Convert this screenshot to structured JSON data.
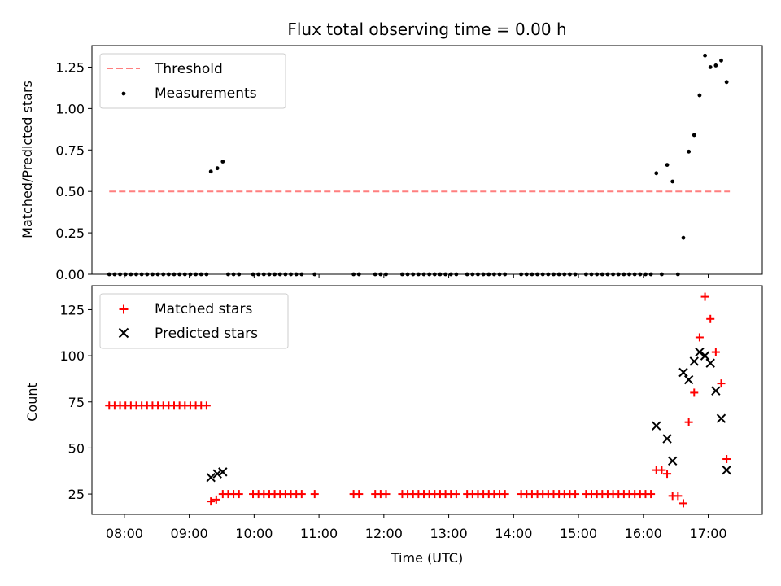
{
  "chart_data": [
    {
      "type": "scatter",
      "title": "Flux total observing time = 0.00 h",
      "xlabel": "",
      "ylabel": "Matched/Predicted stars",
      "xlim": [
        "07:30",
        "17:50"
      ],
      "ylim": [
        0,
        1.38
      ],
      "yticks": [
        0.0,
        0.25,
        0.5,
        0.75,
        1.0,
        1.25
      ],
      "ytick_labels": [
        "0.00",
        "0.25",
        "0.50",
        "0.75",
        "1.00",
        "1.25"
      ],
      "xticks": [
        "08:00",
        "09:00",
        "10:00",
        "11:00",
        "12:00",
        "13:00",
        "14:00",
        "15:00",
        "16:00",
        "17:00"
      ],
      "legend_position": "top-left",
      "legend": [
        "Threshold",
        "Measurements"
      ],
      "series": [
        {
          "name": "Threshold",
          "kind": "dashed-line",
          "color": "#ff7f7f",
          "points": [
            [
              "07:46",
              0.5
            ],
            [
              "17:20",
              0.5
            ]
          ]
        },
        {
          "name": "Measurements",
          "kind": "dot",
          "color": "#000000",
          "points": [
            [
              "07:46",
              0
            ],
            [
              "07:51",
              0
            ],
            [
              "07:56",
              0
            ],
            [
              "08:01",
              0
            ],
            [
              "08:06",
              0
            ],
            [
              "08:11",
              0
            ],
            [
              "08:16",
              0
            ],
            [
              "08:21",
              0
            ],
            [
              "08:26",
              0
            ],
            [
              "08:31",
              0
            ],
            [
              "08:36",
              0
            ],
            [
              "08:41",
              0
            ],
            [
              "08:46",
              0
            ],
            [
              "08:51",
              0
            ],
            [
              "08:56",
              0
            ],
            [
              "09:01",
              0
            ],
            [
              "09:06",
              0
            ],
            [
              "09:11",
              0
            ],
            [
              "09:16",
              0
            ],
            [
              "09:20",
              0.62
            ],
            [
              "09:26",
              0.64
            ],
            [
              "09:31",
              0.68
            ],
            [
              "09:36",
              0
            ],
            [
              "09:41",
              0
            ],
            [
              "09:46",
              0
            ],
            [
              "09:59",
              0
            ],
            [
              "10:04",
              0
            ],
            [
              "10:09",
              0
            ],
            [
              "10:14",
              0
            ],
            [
              "10:19",
              0
            ],
            [
              "10:24",
              0
            ],
            [
              "10:29",
              0
            ],
            [
              "10:34",
              0
            ],
            [
              "10:39",
              0
            ],
            [
              "10:44",
              0
            ],
            [
              "10:56",
              0
            ],
            [
              "11:32",
              0
            ],
            [
              "11:37",
              0
            ],
            [
              "11:52",
              0
            ],
            [
              "11:57",
              0
            ],
            [
              "12:02",
              0
            ],
            [
              "12:17",
              0
            ],
            [
              "12:22",
              0
            ],
            [
              "12:27",
              0
            ],
            [
              "12:32",
              0
            ],
            [
              "12:37",
              0
            ],
            [
              "12:42",
              0
            ],
            [
              "12:47",
              0
            ],
            [
              "12:52",
              0
            ],
            [
              "12:57",
              0
            ],
            [
              "13:02",
              0
            ],
            [
              "13:07",
              0
            ],
            [
              "13:17",
              0
            ],
            [
              "13:22",
              0
            ],
            [
              "13:27",
              0
            ],
            [
              "13:32",
              0
            ],
            [
              "13:37",
              0
            ],
            [
              "13:42",
              0
            ],
            [
              "13:47",
              0
            ],
            [
              "13:52",
              0
            ],
            [
              "14:07",
              0
            ],
            [
              "14:12",
              0
            ],
            [
              "14:17",
              0
            ],
            [
              "14:22",
              0
            ],
            [
              "14:27",
              0
            ],
            [
              "14:32",
              0
            ],
            [
              "14:37",
              0
            ],
            [
              "14:42",
              0
            ],
            [
              "14:47",
              0
            ],
            [
              "14:52",
              0
            ],
            [
              "14:57",
              0
            ],
            [
              "15:07",
              0
            ],
            [
              "15:12",
              0
            ],
            [
              "15:17",
              0
            ],
            [
              "15:22",
              0
            ],
            [
              "15:27",
              0
            ],
            [
              "15:32",
              0
            ],
            [
              "15:37",
              0
            ],
            [
              "15:42",
              0
            ],
            [
              "15:47",
              0
            ],
            [
              "15:52",
              0
            ],
            [
              "15:57",
              0
            ],
            [
              "16:02",
              0
            ],
            [
              "16:07",
              0
            ],
            [
              "16:12",
              0.61
            ],
            [
              "16:17",
              0
            ],
            [
              "16:22",
              0.66
            ],
            [
              "16:27",
              0.56
            ],
            [
              "16:32",
              0
            ],
            [
              "16:37",
              0.22
            ],
            [
              "16:42",
              0.74
            ],
            [
              "16:47",
              0.84
            ],
            [
              "16:52",
              1.08
            ],
            [
              "16:57",
              1.32
            ],
            [
              "17:02",
              1.25
            ],
            [
              "17:07",
              1.26
            ],
            [
              "17:12",
              1.29
            ],
            [
              "17:17",
              1.16
            ]
          ]
        }
      ]
    },
    {
      "type": "scatter",
      "title": "",
      "xlabel": "Time (UTC)",
      "ylabel": "Count",
      "xlim": [
        "07:30",
        "17:50"
      ],
      "ylim": [
        14,
        138
      ],
      "yticks": [
        25,
        50,
        75,
        100,
        125
      ],
      "ytick_labels": [
        "25",
        "50",
        "75",
        "100",
        "125"
      ],
      "xticks": [
        "08:00",
        "09:00",
        "10:00",
        "11:00",
        "12:00",
        "13:00",
        "14:00",
        "15:00",
        "16:00",
        "17:00"
      ],
      "legend_position": "top-left",
      "legend": [
        "Matched stars",
        "Predicted stars"
      ],
      "series": [
        {
          "name": "Matched stars",
          "kind": "plus",
          "color": "#ff0000",
          "points": [
            [
              "07:46",
              73
            ],
            [
              "07:51",
              73
            ],
            [
              "07:56",
              73
            ],
            [
              "08:01",
              73
            ],
            [
              "08:06",
              73
            ],
            [
              "08:11",
              73
            ],
            [
              "08:16",
              73
            ],
            [
              "08:21",
              73
            ],
            [
              "08:26",
              73
            ],
            [
              "08:31",
              73
            ],
            [
              "08:36",
              73
            ],
            [
              "08:41",
              73
            ],
            [
              "08:46",
              73
            ],
            [
              "08:51",
              73
            ],
            [
              "08:56",
              73
            ],
            [
              "09:01",
              73
            ],
            [
              "09:06",
              73
            ],
            [
              "09:11",
              73
            ],
            [
              "09:16",
              73
            ],
            [
              "09:20",
              21
            ],
            [
              "09:25",
              22
            ],
            [
              "09:31",
              25
            ],
            [
              "09:36",
              25
            ],
            [
              "09:41",
              25
            ],
            [
              "09:46",
              25
            ],
            [
              "09:59",
              25
            ],
            [
              "10:04",
              25
            ],
            [
              "10:09",
              25
            ],
            [
              "10:14",
              25
            ],
            [
              "10:19",
              25
            ],
            [
              "10:24",
              25
            ],
            [
              "10:29",
              25
            ],
            [
              "10:34",
              25
            ],
            [
              "10:39",
              25
            ],
            [
              "10:44",
              25
            ],
            [
              "10:56",
              25
            ],
            [
              "11:32",
              25
            ],
            [
              "11:37",
              25
            ],
            [
              "11:52",
              25
            ],
            [
              "11:57",
              25
            ],
            [
              "12:02",
              25
            ],
            [
              "12:17",
              25
            ],
            [
              "12:22",
              25
            ],
            [
              "12:27",
              25
            ],
            [
              "12:32",
              25
            ],
            [
              "12:37",
              25
            ],
            [
              "12:42",
              25
            ],
            [
              "12:47",
              25
            ],
            [
              "12:52",
              25
            ],
            [
              "12:57",
              25
            ],
            [
              "13:02",
              25
            ],
            [
              "13:07",
              25
            ],
            [
              "13:17",
              25
            ],
            [
              "13:22",
              25
            ],
            [
              "13:27",
              25
            ],
            [
              "13:32",
              25
            ],
            [
              "13:37",
              25
            ],
            [
              "13:42",
              25
            ],
            [
              "13:47",
              25
            ],
            [
              "13:52",
              25
            ],
            [
              "14:07",
              25
            ],
            [
              "14:12",
              25
            ],
            [
              "14:17",
              25
            ],
            [
              "14:22",
              25
            ],
            [
              "14:27",
              25
            ],
            [
              "14:32",
              25
            ],
            [
              "14:37",
              25
            ],
            [
              "14:42",
              25
            ],
            [
              "14:47",
              25
            ],
            [
              "14:52",
              25
            ],
            [
              "14:57",
              25
            ],
            [
              "15:07",
              25
            ],
            [
              "15:12",
              25
            ],
            [
              "15:17",
              25
            ],
            [
              "15:22",
              25
            ],
            [
              "15:27",
              25
            ],
            [
              "15:32",
              25
            ],
            [
              "15:37",
              25
            ],
            [
              "15:42",
              25
            ],
            [
              "15:47",
              25
            ],
            [
              "15:52",
              25
            ],
            [
              "15:57",
              25
            ],
            [
              "16:02",
              25
            ],
            [
              "16:07",
              25
            ],
            [
              "16:12",
              38
            ],
            [
              "16:17",
              38
            ],
            [
              "16:22",
              36
            ],
            [
              "16:27",
              24
            ],
            [
              "16:32",
              24
            ],
            [
              "16:37",
              20
            ],
            [
              "16:42",
              64
            ],
            [
              "16:47",
              80
            ],
            [
              "16:52",
              110
            ],
            [
              "16:57",
              132
            ],
            [
              "17:02",
              120
            ],
            [
              "17:07",
              102
            ],
            [
              "17:12",
              85
            ],
            [
              "17:17",
              44
            ]
          ]
        },
        {
          "name": "Predicted stars",
          "kind": "cross",
          "color": "#000000",
          "points": [
            [
              "09:20",
              34
            ],
            [
              "09:26",
              36
            ],
            [
              "09:31",
              37
            ],
            [
              "16:12",
              62
            ],
            [
              "16:22",
              55
            ],
            [
              "16:27",
              43
            ],
            [
              "16:37",
              91
            ],
            [
              "16:42",
              87
            ],
            [
              "16:47",
              97
            ],
            [
              "16:52",
              102
            ],
            [
              "16:57",
              100
            ],
            [
              "17:02",
              96
            ],
            [
              "17:07",
              81
            ],
            [
              "17:12",
              66
            ],
            [
              "17:17",
              38
            ]
          ]
        }
      ]
    }
  ]
}
